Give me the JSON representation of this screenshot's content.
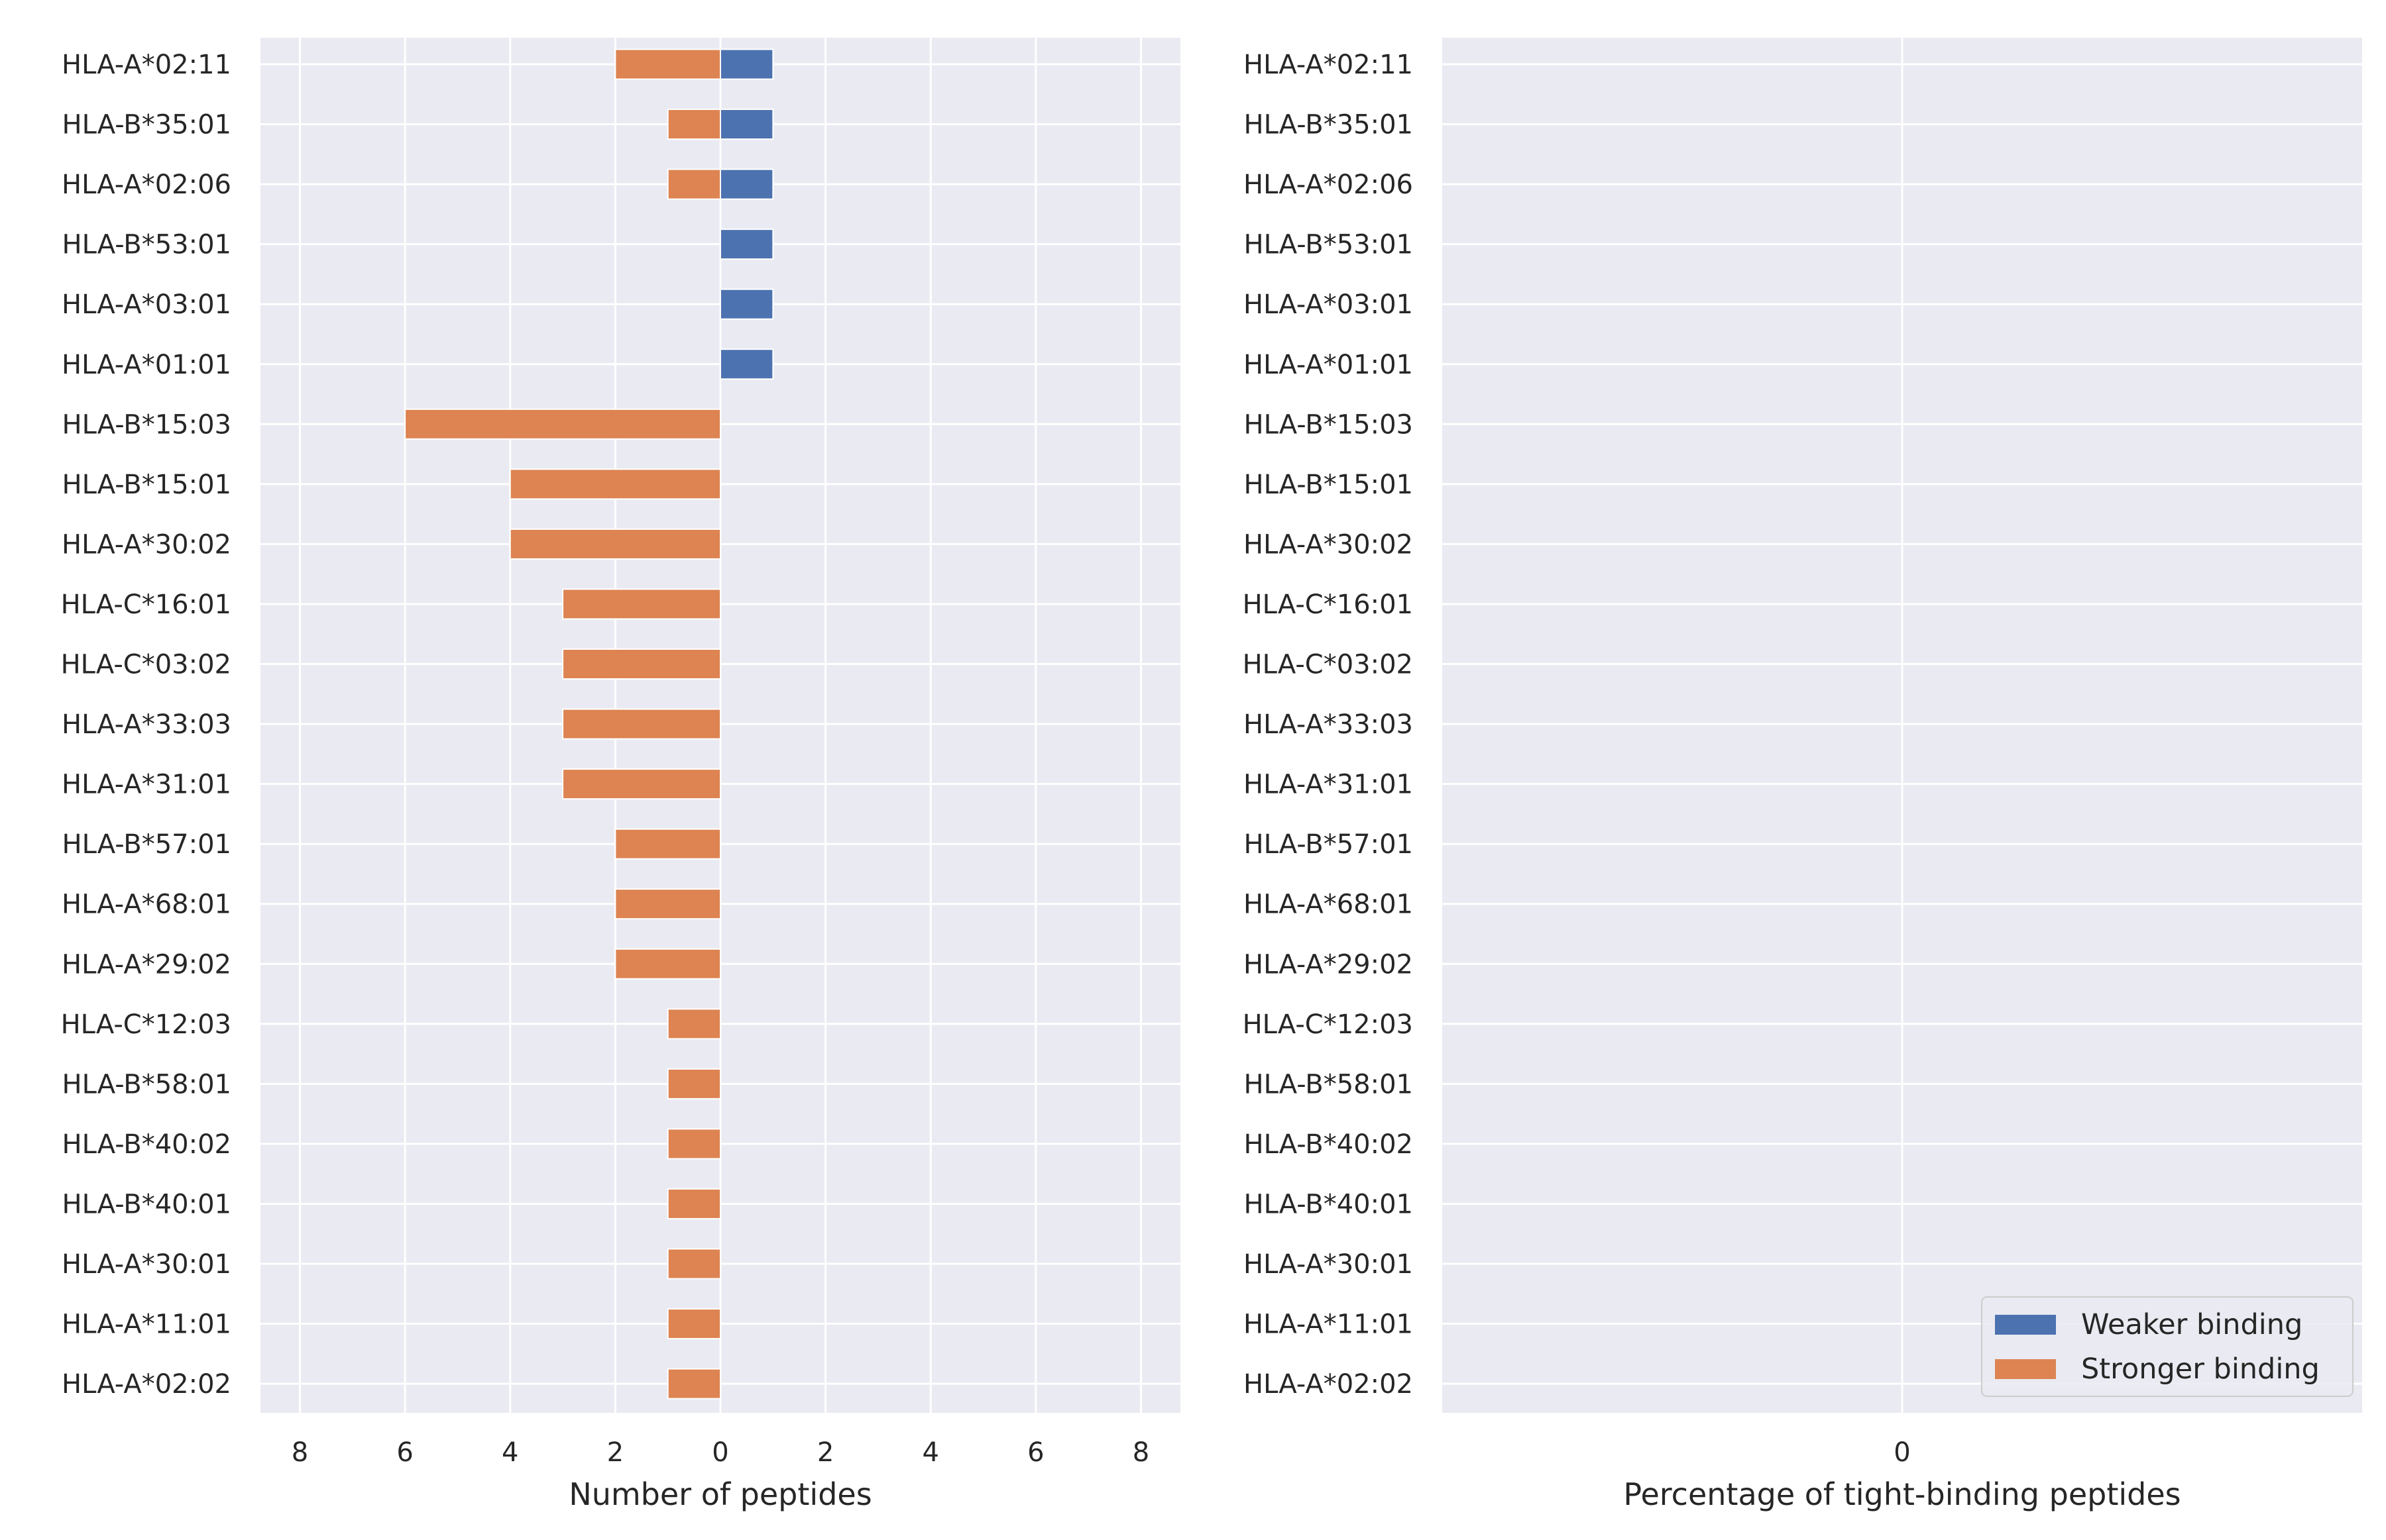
{
  "colors": {
    "weaker": "#4c72b0",
    "stronger": "#dd8452",
    "axes_bg": "#eaeaf2",
    "grid": "#ffffff",
    "text": "#262626"
  },
  "chart_data": [
    {
      "type": "bar",
      "orientation": "horizontal",
      "layout": "diverging",
      "categories": [
        "HLA-A*02:11",
        "HLA-B*35:01",
        "HLA-A*02:06",
        "HLA-B*53:01",
        "HLA-A*03:01",
        "HLA-A*01:01",
        "HLA-B*15:03",
        "HLA-B*15:01",
        "HLA-A*30:02",
        "HLA-C*16:01",
        "HLA-C*03:02",
        "HLA-A*33:03",
        "HLA-A*31:01",
        "HLA-B*57:01",
        "HLA-A*68:01",
        "HLA-A*29:02",
        "HLA-C*12:03",
        "HLA-B*58:01",
        "HLA-B*40:02",
        "HLA-B*40:01",
        "HLA-A*30:01",
        "HLA-A*11:01",
        "HLA-A*02:02"
      ],
      "series": [
        {
          "name": "Weaker binding",
          "side": "right",
          "values": [
            1,
            1,
            1,
            1,
            1,
            1,
            0,
            0,
            0,
            0,
            0,
            0,
            0,
            0,
            0,
            0,
            0,
            0,
            0,
            0,
            0,
            0,
            0
          ]
        },
        {
          "name": "Stronger binding",
          "side": "left",
          "values": [
            2,
            1,
            1,
            0,
            0,
            0,
            6,
            4,
            4,
            3,
            3,
            3,
            3,
            2,
            2,
            2,
            1,
            1,
            1,
            1,
            1,
            1,
            1
          ]
        }
      ],
      "xlabel": "Number of peptides",
      "xlim": [
        -8.75,
        8.75
      ],
      "xticks": [
        -8,
        -6,
        -4,
        -2,
        0,
        2,
        4,
        6,
        8
      ],
      "xtick_labels": [
        "8",
        "6",
        "4",
        "2",
        "0",
        "2",
        "4",
        "6",
        "8"
      ],
      "grid": true
    },
    {
      "type": "bar",
      "orientation": "horizontal",
      "categories": [
        "HLA-A*02:11",
        "HLA-B*35:01",
        "HLA-A*02:06",
        "HLA-B*53:01",
        "HLA-A*03:01",
        "HLA-A*01:01",
        "HLA-B*15:03",
        "HLA-B*15:01",
        "HLA-A*30:02",
        "HLA-C*16:01",
        "HLA-C*03:02",
        "HLA-A*33:03",
        "HLA-A*31:01",
        "HLA-B*57:01",
        "HLA-A*68:01",
        "HLA-A*29:02",
        "HLA-C*12:03",
        "HLA-B*58:01",
        "HLA-B*40:02",
        "HLA-B*40:01",
        "HLA-A*30:01",
        "HLA-A*11:01",
        "HLA-A*02:02"
      ],
      "series": [],
      "xlabel": "Percentage of tight-binding peptides",
      "xticks": [
        0
      ],
      "xtick_labels": [
        "0"
      ],
      "grid": true,
      "legend": {
        "placement": "lower-right",
        "entries": [
          "Weaker binding",
          "Stronger binding"
        ]
      }
    }
  ]
}
